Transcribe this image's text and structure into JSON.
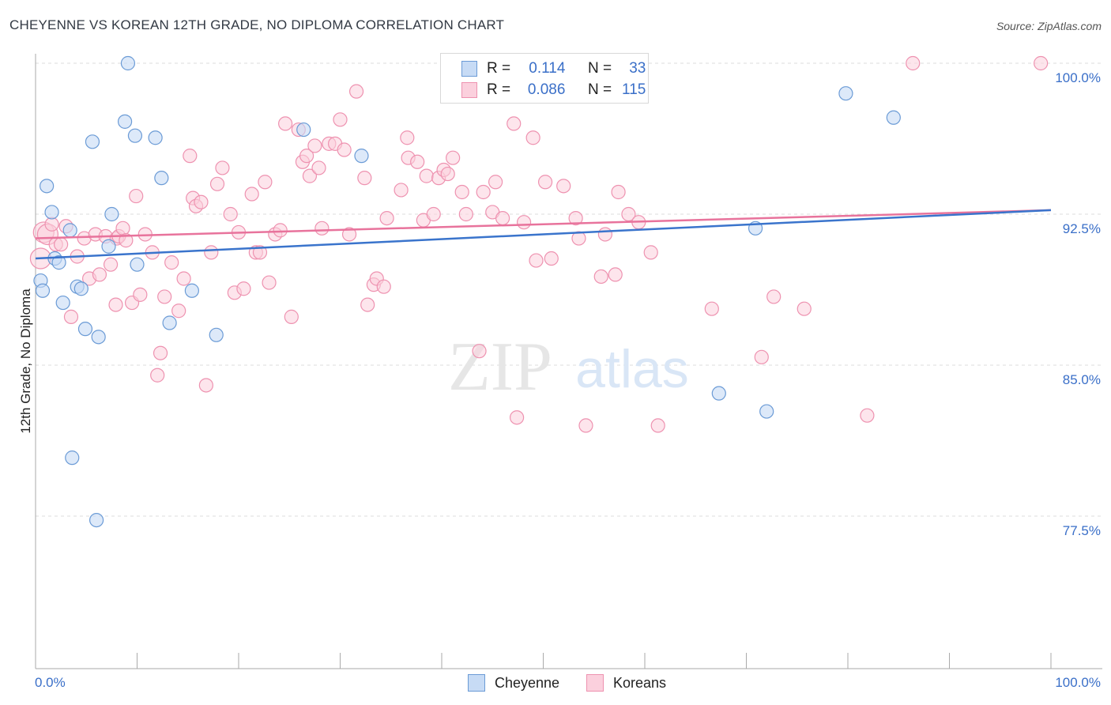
{
  "title": "CHEYENNE VS KOREAN 12TH GRADE, NO DIPLOMA CORRELATION CHART",
  "source": "Source: ZipAtlas.com",
  "watermark": {
    "zip": "ZIP",
    "atlas": "atlas"
  },
  "legend": {
    "rows": [
      {
        "r_label": "R =",
        "r_value": "0.114",
        "n_label": "N =",
        "n_value": "33",
        "color": "#a9c8f0"
      },
      {
        "r_label": "R =",
        "r_value": "0.086",
        "n_label": "N =",
        "n_value": "115",
        "color": "#f5b8cc"
      }
    ]
  },
  "bottom_legend": [
    "Cheyenne",
    "Koreans"
  ],
  "colors": {
    "cheyenne_fill": "#c7dbf5",
    "cheyenne_stroke": "#6b9bd6",
    "cheyenne_line": "#3a74cc",
    "korean_fill": "#fbd0dd",
    "korean_stroke": "#ee92b0",
    "korean_line": "#e8739c",
    "tick_label": "#3a6fc8",
    "grid": "#dddddd"
  },
  "chart_data": {
    "type": "scatter",
    "title": "CHEYENNE VS KOREAN 12TH GRADE, NO DIPLOMA CORRELATION CHART",
    "xlabel": "",
    "ylabel": "12th Grade, No Diploma",
    "xlim": [
      0,
      100
    ],
    "ylim": [
      70,
      101.5
    ],
    "x_tick_labels": [
      "0.0%",
      "100.0%"
    ],
    "y_ticks": [
      77.5,
      85.0,
      92.5,
      100.0
    ],
    "y_tick_labels": [
      "77.5%",
      "85.0%",
      "92.5%",
      "100.0%"
    ],
    "grid": true,
    "series": [
      {
        "name": "Cheyenne",
        "r": 0.114,
        "n": 33,
        "trend": {
          "x": [
            0,
            100
          ],
          "y": [
            90.3,
            92.7
          ]
        },
        "points": [
          [
            0.5,
            89.2
          ],
          [
            0.7,
            88.7
          ],
          [
            1.1,
            93.9
          ],
          [
            1.6,
            92.6
          ],
          [
            1.9,
            90.3
          ],
          [
            2.3,
            90.1
          ],
          [
            2.7,
            88.1
          ],
          [
            3.4,
            91.7
          ],
          [
            3.6,
            80.4
          ],
          [
            4.1,
            88.9
          ],
          [
            4.5,
            88.8
          ],
          [
            4.9,
            86.8
          ],
          [
            5.6,
            96.1
          ],
          [
            6.0,
            77.3
          ],
          [
            6.2,
            86.4
          ],
          [
            7.2,
            90.9
          ],
          [
            7.5,
            92.5
          ],
          [
            8.8,
            97.1
          ],
          [
            9.1,
            100.0
          ],
          [
            9.8,
            96.4
          ],
          [
            10.0,
            90.0
          ],
          [
            11.8,
            96.3
          ],
          [
            12.4,
            94.3
          ],
          [
            13.2,
            87.1
          ],
          [
            15.4,
            88.7
          ],
          [
            17.8,
            86.5
          ],
          [
            26.4,
            96.7
          ],
          [
            32.1,
            95.4
          ],
          [
            67.3,
            83.6
          ],
          [
            70.9,
            91.8
          ],
          [
            72.0,
            82.7
          ],
          [
            79.8,
            98.5
          ],
          [
            84.5,
            97.3
          ]
        ]
      },
      {
        "name": "Koreans",
        "r": 0.086,
        "n": 115,
        "trend": {
          "x": [
            0,
            100
          ],
          "y": [
            91.3,
            92.7
          ]
        },
        "points": [
          [
            0.5,
            90.3
          ],
          [
            0.8,
            91.6
          ],
          [
            1.2,
            91.5
          ],
          [
            1.6,
            92.0
          ],
          [
            2.0,
            91.0
          ],
          [
            2.5,
            91.0
          ],
          [
            3.0,
            91.9
          ],
          [
            3.5,
            87.4
          ],
          [
            4.1,
            90.4
          ],
          [
            4.8,
            91.3
          ],
          [
            5.3,
            89.3
          ],
          [
            5.9,
            91.5
          ],
          [
            6.3,
            89.5
          ],
          [
            6.9,
            91.4
          ],
          [
            7.4,
            90.0
          ],
          [
            7.9,
            88.0
          ],
          [
            8.0,
            91.3
          ],
          [
            8.2,
            91.4
          ],
          [
            8.6,
            91.8
          ],
          [
            8.9,
            91.2
          ],
          [
            9.5,
            88.1
          ],
          [
            9.9,
            93.4
          ],
          [
            10.3,
            88.5
          ],
          [
            10.8,
            91.5
          ],
          [
            11.5,
            90.6
          ],
          [
            12.0,
            84.5
          ],
          [
            12.3,
            85.6
          ],
          [
            12.7,
            88.4
          ],
          [
            13.4,
            90.1
          ],
          [
            14.1,
            87.7
          ],
          [
            14.6,
            89.3
          ],
          [
            15.2,
            95.4
          ],
          [
            15.5,
            93.3
          ],
          [
            15.8,
            92.9
          ],
          [
            16.3,
            93.1
          ],
          [
            16.8,
            84.0
          ],
          [
            17.3,
            90.6
          ],
          [
            17.9,
            94.0
          ],
          [
            18.4,
            94.8
          ],
          [
            19.2,
            92.5
          ],
          [
            19.6,
            88.6
          ],
          [
            20.0,
            91.6
          ],
          [
            20.5,
            88.8
          ],
          [
            21.3,
            93.5
          ],
          [
            21.7,
            90.6
          ],
          [
            22.1,
            90.6
          ],
          [
            22.6,
            94.1
          ],
          [
            23.0,
            89.1
          ],
          [
            23.6,
            91.5
          ],
          [
            24.1,
            91.7
          ],
          [
            24.6,
            97.0
          ],
          [
            25.2,
            87.4
          ],
          [
            25.9,
            96.7
          ],
          [
            26.3,
            95.1
          ],
          [
            26.7,
            95.4
          ],
          [
            27.0,
            94.4
          ],
          [
            27.5,
            95.9
          ],
          [
            27.9,
            94.8
          ],
          [
            28.2,
            91.8
          ],
          [
            28.9,
            96.0
          ],
          [
            29.5,
            96.0
          ],
          [
            30.0,
            97.2
          ],
          [
            30.4,
            95.7
          ],
          [
            30.9,
            91.5
          ],
          [
            31.6,
            98.6
          ],
          [
            32.4,
            94.3
          ],
          [
            32.7,
            88.0
          ],
          [
            33.3,
            89.0
          ],
          [
            33.6,
            89.3
          ],
          [
            34.3,
            88.9
          ],
          [
            34.6,
            92.3
          ],
          [
            36.0,
            93.7
          ],
          [
            36.6,
            96.3
          ],
          [
            36.7,
            95.3
          ],
          [
            37.6,
            95.1
          ],
          [
            38.2,
            92.2
          ],
          [
            38.5,
            94.4
          ],
          [
            39.2,
            92.5
          ],
          [
            39.7,
            94.3
          ],
          [
            40.2,
            94.7
          ],
          [
            40.6,
            94.5
          ],
          [
            41.1,
            95.3
          ],
          [
            42.0,
            93.6
          ],
          [
            42.4,
            92.5
          ],
          [
            43.7,
            85.7
          ],
          [
            44.1,
            93.6
          ],
          [
            45.0,
            92.6
          ],
          [
            45.3,
            94.1
          ],
          [
            46.0,
            92.3
          ],
          [
            47.1,
            97.0
          ],
          [
            47.4,
            82.4
          ],
          [
            48.1,
            92.1
          ],
          [
            49.0,
            96.3
          ],
          [
            49.3,
            90.2
          ],
          [
            50.2,
            94.1
          ],
          [
            50.8,
            90.3
          ],
          [
            52.0,
            93.9
          ],
          [
            53.2,
            92.3
          ],
          [
            53.5,
            91.3
          ],
          [
            54.2,
            82.0
          ],
          [
            55.7,
            89.4
          ],
          [
            56.1,
            91.5
          ],
          [
            57.1,
            89.5
          ],
          [
            57.4,
            93.6
          ],
          [
            58.4,
            92.5
          ],
          [
            59.4,
            92.1
          ],
          [
            60.6,
            90.6
          ],
          [
            61.3,
            82.0
          ],
          [
            66.6,
            87.8
          ],
          [
            71.5,
            85.4
          ],
          [
            72.7,
            88.4
          ],
          [
            75.7,
            87.8
          ],
          [
            81.9,
            82.5
          ],
          [
            86.4,
            100.0
          ],
          [
            99.0,
            100.0
          ]
        ]
      }
    ]
  }
}
